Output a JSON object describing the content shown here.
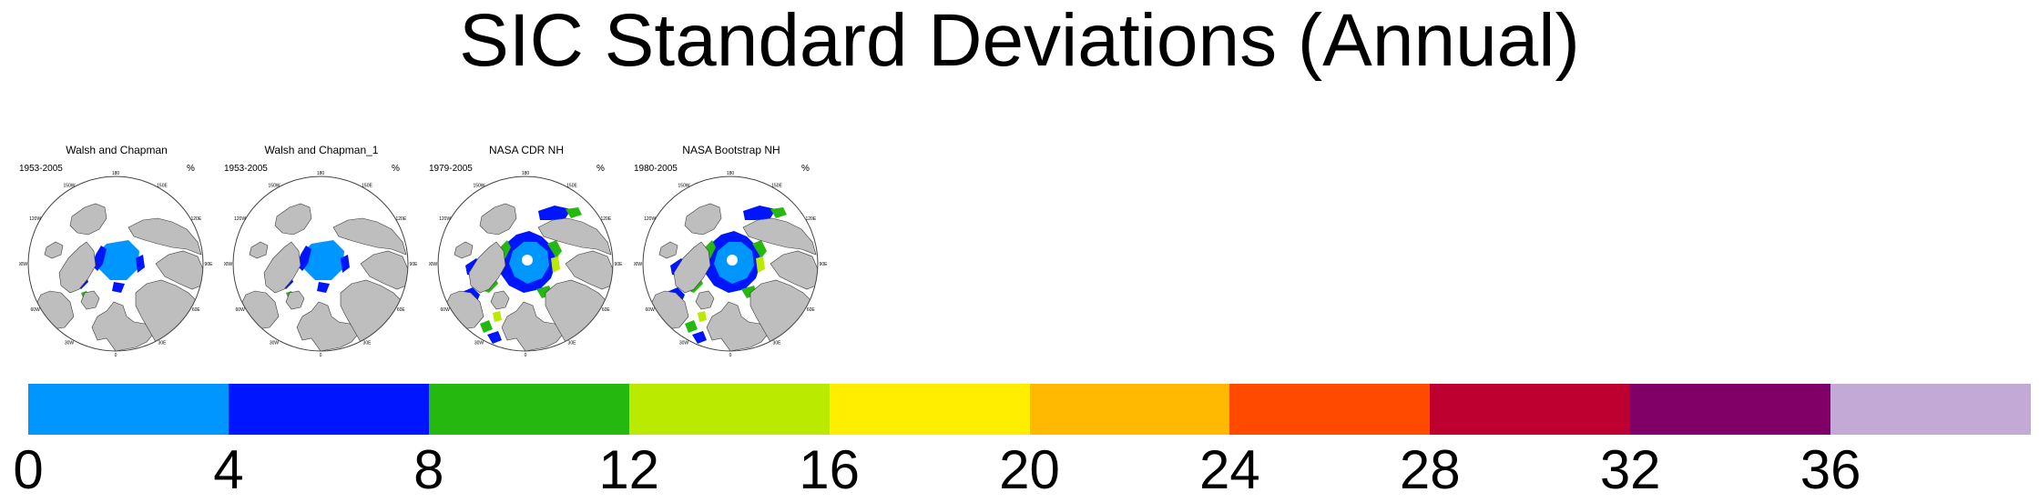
{
  "title": "SIC Standard Deviations (Annual)",
  "panels": [
    {
      "title": "Walsh and Chapman",
      "years": "1953-2005",
      "unit": "%",
      "pattern": "wc"
    },
    {
      "title": "Walsh and Chapman_1",
      "years": "1953-2005",
      "unit": "%",
      "pattern": "wc"
    },
    {
      "title": "NASA CDR NH",
      "years": "1979-2005",
      "unit": "%",
      "pattern": "sat"
    },
    {
      "title": "NASA Bootstrap NH",
      "years": "1980-2005",
      "unit": "%",
      "pattern": "sat"
    }
  ],
  "map_labels": [
    "180",
    "150W",
    "150E",
    "120W",
    "120E",
    "90W",
    "90E",
    "60W",
    "60E",
    "30W",
    "30E",
    "0"
  ],
  "colorbar": {
    "colors": [
      "#0096ff",
      "#0015ff",
      "#25b910",
      "#b9ea00",
      "#ffee00",
      "#ffb900",
      "#ff4a00",
      "#bd0030",
      "#800068",
      "#c3a9d6"
    ],
    "ticks": [
      "0",
      "4",
      "8",
      "12",
      "16",
      "20",
      "24",
      "28",
      "32",
      "36"
    ]
  },
  "palette": {
    "ocean": "#ffffff",
    "land": "#bebebe",
    "outline": "#3a3a3a"
  }
}
